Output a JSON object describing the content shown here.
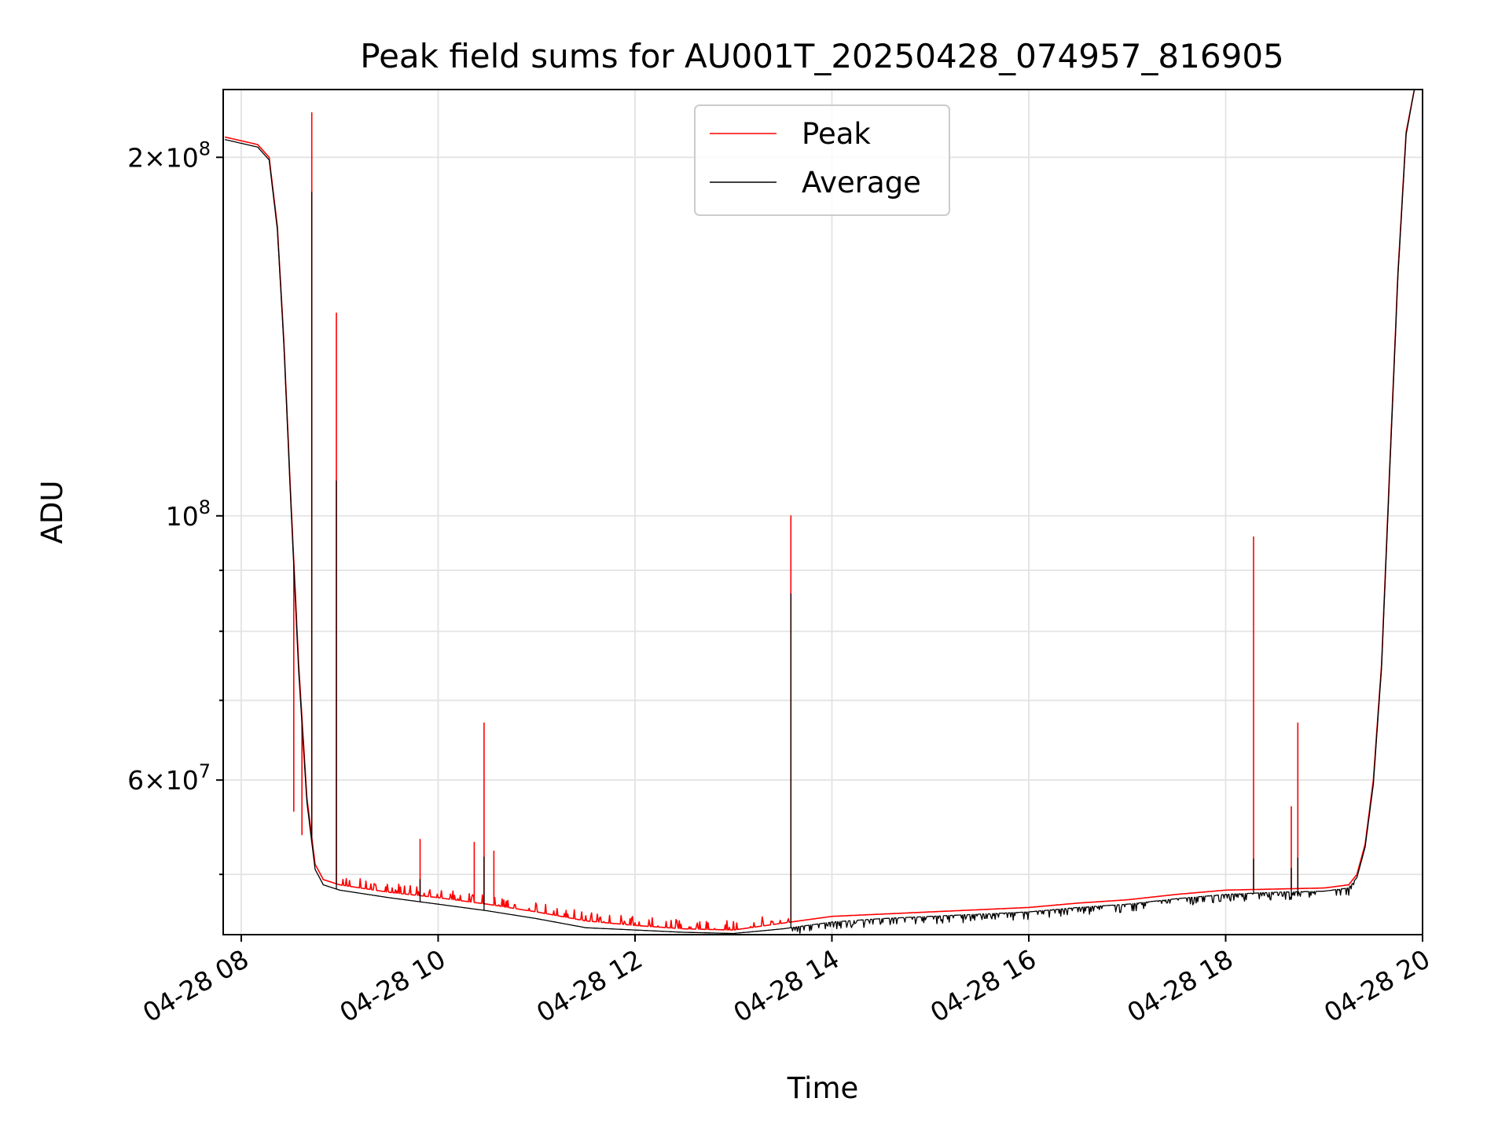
{
  "chart_data": {
    "type": "line",
    "title": "Peak field sums for AU001T_20250428_074957_816905",
    "xlabel": "Time",
    "ylabel": "ADU",
    "y_scale": "log",
    "grid": true,
    "legend_position": "top-center",
    "xlim": [
      "04-28 07:49",
      "04-28 20:00"
    ],
    "ylim": [
      44500000,
      228000000
    ],
    "x_ticks": [
      "04-28 08",
      "04-28 10",
      "04-28 12",
      "04-28 14",
      "04-28 16",
      "04-28 18",
      "04-28 20"
    ],
    "y_major_ticks": [
      {
        "value": 200000000,
        "mantissa": "2",
        "exponent": "8"
      },
      {
        "value": 100000000,
        "mantissa": "",
        "exponent": "8"
      },
      {
        "value": 60000000,
        "mantissa": "6",
        "exponent": "7"
      }
    ],
    "y_minor_ticks": [
      50000000,
      70000000,
      80000000,
      90000000
    ],
    "series": [
      {
        "name": "Peak",
        "color": "#ff0000",
        "baseline": [
          [
            "04-28 07:50",
            208000000
          ],
          [
            "04-28 08:10",
            205000000
          ],
          [
            "04-28 08:17",
            200000000
          ],
          [
            "04-28 08:22",
            175000000
          ],
          [
            "04-28 08:26",
            140000000
          ],
          [
            "04-28 08:30",
            105000000
          ],
          [
            "04-28 08:35",
            75000000
          ],
          [
            "04-28 08:40",
            58000000
          ],
          [
            "04-28 08:45",
            51000000
          ],
          [
            "04-28 08:50",
            49500000
          ],
          [
            "04-28 09:00",
            49000000
          ],
          [
            "04-28 09:30",
            48300000
          ],
          [
            "04-28 10:00",
            47800000
          ],
          [
            "04-28 10:30",
            47200000
          ],
          [
            "04-28 11:00",
            46500000
          ],
          [
            "04-28 11:30",
            45700000
          ],
          [
            "04-28 12:00",
            45300000
          ],
          [
            "04-28 12:30",
            45000000
          ],
          [
            "04-28 13:00",
            44900000
          ],
          [
            "04-28 13:30",
            45500000
          ],
          [
            "04-28 14:00",
            46100000
          ],
          [
            "04-28 14:30",
            46300000
          ],
          [
            "04-28 15:00",
            46500000
          ],
          [
            "04-28 15:30",
            46700000
          ],
          [
            "04-28 16:00",
            46900000
          ],
          [
            "04-28 16:30",
            47300000
          ],
          [
            "04-28 17:00",
            47600000
          ],
          [
            "04-28 17:30",
            48100000
          ],
          [
            "04-28 18:00",
            48500000
          ],
          [
            "04-28 18:30",
            48600000
          ],
          [
            "04-28 19:00",
            48700000
          ],
          [
            "04-28 19:15",
            49000000
          ],
          [
            "04-28 19:20",
            50000000
          ],
          [
            "04-28 19:25",
            53000000
          ],
          [
            "04-28 19:30",
            60000000
          ],
          [
            "04-28 19:35",
            75000000
          ],
          [
            "04-28 19:40",
            110000000
          ],
          [
            "04-28 19:45",
            160000000
          ],
          [
            "04-28 19:50",
            210000000
          ],
          [
            "04-28 19:55",
            228000000
          ]
        ],
        "spikes": [
          [
            "04-28 08:32",
            56500000
          ],
          [
            "04-28 08:37",
            54000000
          ],
          [
            "04-28 08:43",
            218000000
          ],
          [
            "04-28 08:58",
            148000000
          ],
          [
            "04-28 09:49",
            53500000
          ],
          [
            "04-28 10:22",
            53200000
          ],
          [
            "04-28 10:28",
            67000000
          ],
          [
            "04-28 10:34",
            52300000
          ],
          [
            "04-28 13:35",
            100000000
          ],
          [
            "04-28 18:17",
            96000000
          ],
          [
            "04-28 18:40",
            57000000
          ],
          [
            "04-28 18:44",
            67000000
          ]
        ]
      },
      {
        "name": "Average",
        "color": "#000000",
        "baseline": [
          [
            "04-28 07:50",
            207000000
          ],
          [
            "04-28 08:10",
            204000000
          ],
          [
            "04-28 08:17",
            199000000
          ],
          [
            "04-28 08:22",
            174000000
          ],
          [
            "04-28 08:26",
            139000000
          ],
          [
            "04-28 08:30",
            104000000
          ],
          [
            "04-28 08:35",
            74000000
          ],
          [
            "04-28 08:40",
            57500000
          ],
          [
            "04-28 08:45",
            50500000
          ],
          [
            "04-28 08:50",
            49000000
          ],
          [
            "04-28 09:00",
            48500000
          ],
          [
            "04-28 09:30",
            47800000
          ],
          [
            "04-28 10:00",
            47200000
          ],
          [
            "04-28 10:30",
            46600000
          ],
          [
            "04-28 11:00",
            45900000
          ],
          [
            "04-28 11:30",
            45100000
          ],
          [
            "04-28 12:00",
            44900000
          ],
          [
            "04-28 12:30",
            44700000
          ],
          [
            "04-28 13:00",
            44600000
          ],
          [
            "04-28 13:30",
            45000000
          ],
          [
            "04-28 14:00",
            45600000
          ],
          [
            "04-28 14:30",
            45900000
          ],
          [
            "04-28 15:00",
            46100000
          ],
          [
            "04-28 15:30",
            46300000
          ],
          [
            "04-28 16:00",
            46500000
          ],
          [
            "04-28 16:30",
            46900000
          ],
          [
            "04-28 17:00",
            47200000
          ],
          [
            "04-28 17:30",
            47700000
          ],
          [
            "04-28 18:00",
            48100000
          ],
          [
            "04-28 18:30",
            48300000
          ],
          [
            "04-28 19:00",
            48400000
          ],
          [
            "04-28 19:15",
            48700000
          ],
          [
            "04-28 19:20",
            49700000
          ],
          [
            "04-28 19:25",
            52700000
          ],
          [
            "04-28 19:30",
            59500000
          ],
          [
            "04-28 19:35",
            74500000
          ],
          [
            "04-28 19:40",
            109000000
          ],
          [
            "04-28 19:45",
            159000000
          ],
          [
            "04-28 19:50",
            209000000
          ],
          [
            "04-28 19:55",
            228000000
          ]
        ],
        "spikes": [
          [
            "04-28 08:43",
            187000000
          ],
          [
            "04-28 08:58",
            107000000
          ],
          [
            "04-28 09:49",
            49500000
          ],
          [
            "04-28 10:28",
            51700000
          ],
          [
            "04-28 13:35",
            86000000
          ],
          [
            "04-28 18:17",
            51500000
          ],
          [
            "04-28 18:40",
            50600000
          ],
          [
            "04-28 18:44",
            51600000
          ]
        ]
      }
    ]
  }
}
